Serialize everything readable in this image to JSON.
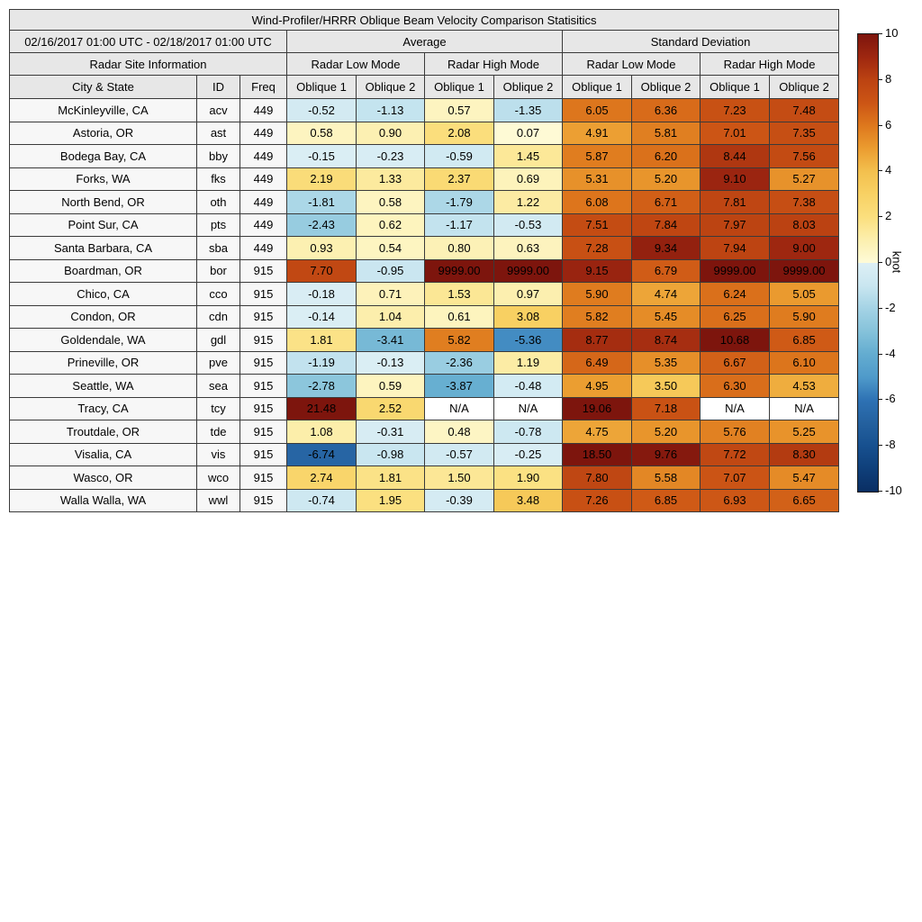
{
  "chart_data": {
    "type": "heatmap",
    "title": "Wind-Profiler/HRRR Oblique Beam Velocity Comparison Statisitics",
    "date_range": "02/16/2017 01:00 UTC - 02/18/2017 01:00 UTC",
    "group_headers": [
      "Average",
      "Standard Deviation"
    ],
    "site_info_header": "Radar Site Information",
    "mode_headers": [
      "Radar Low Mode",
      "Radar High Mode",
      "Radar Low Mode",
      "Radar High Mode"
    ],
    "column_headers": [
      "City & State",
      "ID",
      "Freq",
      "Oblique 1",
      "Oblique 2",
      "Oblique 1",
      "Oblique 2",
      "Oblique 1",
      "Oblique 2",
      "Oblique 1",
      "Oblique 2"
    ],
    "rows": [
      {
        "city": "McKinleyville, CA",
        "id": "acv",
        "freq": "449",
        "values": [
          "-0.52",
          "-1.13",
          "0.57",
          "-1.35",
          "6.05",
          "6.36",
          "7.23",
          "7.48"
        ]
      },
      {
        "city": "Astoria, OR",
        "id": "ast",
        "freq": "449",
        "values": [
          "0.58",
          "0.90",
          "2.08",
          "0.07",
          "4.91",
          "5.81",
          "7.01",
          "7.35"
        ]
      },
      {
        "city": "Bodega Bay, CA",
        "id": "bby",
        "freq": "449",
        "values": [
          "-0.15",
          "-0.23",
          "-0.59",
          "1.45",
          "5.87",
          "6.20",
          "8.44",
          "7.56"
        ]
      },
      {
        "city": "Forks, WA",
        "id": "fks",
        "freq": "449",
        "values": [
          "2.19",
          "1.33",
          "2.37",
          "0.69",
          "5.31",
          "5.20",
          "9.10",
          "5.27"
        ]
      },
      {
        "city": "North Bend, OR",
        "id": "oth",
        "freq": "449",
        "values": [
          "-1.81",
          "0.58",
          "-1.79",
          "1.22",
          "6.08",
          "6.71",
          "7.81",
          "7.38"
        ]
      },
      {
        "city": "Point Sur, CA",
        "id": "pts",
        "freq": "449",
        "values": [
          "-2.43",
          "0.62",
          "-1.17",
          "-0.53",
          "7.51",
          "7.84",
          "7.97",
          "8.03"
        ]
      },
      {
        "city": "Santa Barbara, CA",
        "id": "sba",
        "freq": "449",
        "values": [
          "0.93",
          "0.54",
          "0.80",
          "0.63",
          "7.28",
          "9.34",
          "7.94",
          "9.00"
        ]
      },
      {
        "city": "Boardman, OR",
        "id": "bor",
        "freq": "915",
        "values": [
          "7.70",
          "-0.95",
          "9999.00",
          "9999.00",
          "9.15",
          "6.79",
          "9999.00",
          "9999.00"
        ]
      },
      {
        "city": "Chico, CA",
        "id": "cco",
        "freq": "915",
        "values": [
          "-0.18",
          "0.71",
          "1.53",
          "0.97",
          "5.90",
          "4.74",
          "6.24",
          "5.05"
        ]
      },
      {
        "city": "Condon, OR",
        "id": "cdn",
        "freq": "915",
        "values": [
          "-0.14",
          "1.04",
          "0.61",
          "3.08",
          "5.82",
          "5.45",
          "6.25",
          "5.90"
        ]
      },
      {
        "city": "Goldendale, WA",
        "id": "gdl",
        "freq": "915",
        "values": [
          "1.81",
          "-3.41",
          "5.82",
          "-5.36",
          "8.77",
          "8.74",
          "10.68",
          "6.85"
        ]
      },
      {
        "city": "Prineville, OR",
        "id": "pve",
        "freq": "915",
        "values": [
          "-1.19",
          "-0.13",
          "-2.36",
          "1.19",
          "6.49",
          "5.35",
          "6.67",
          "6.10"
        ]
      },
      {
        "city": "Seattle, WA",
        "id": "sea",
        "freq": "915",
        "values": [
          "-2.78",
          "0.59",
          "-3.87",
          "-0.48",
          "4.95",
          "3.50",
          "6.30",
          "4.53"
        ]
      },
      {
        "city": "Tracy, CA",
        "id": "tcy",
        "freq": "915",
        "values": [
          "21.48",
          "2.52",
          "N/A",
          "N/A",
          "19.06",
          "7.18",
          "N/A",
          "N/A"
        ]
      },
      {
        "city": "Troutdale, OR",
        "id": "tde",
        "freq": "915",
        "values": [
          "1.08",
          "-0.31",
          "0.48",
          "-0.78",
          "4.75",
          "5.20",
          "5.76",
          "5.25"
        ]
      },
      {
        "city": "Visalia, CA",
        "id": "vis",
        "freq": "915",
        "values": [
          "-6.74",
          "-0.98",
          "-0.57",
          "-0.25",
          "18.50",
          "9.76",
          "7.72",
          "8.30"
        ]
      },
      {
        "city": "Wasco, OR",
        "id": "wco",
        "freq": "915",
        "values": [
          "2.74",
          "1.81",
          "1.50",
          "1.90",
          "7.80",
          "5.58",
          "7.07",
          "5.47"
        ]
      },
      {
        "city": "Walla Walla, WA",
        "id": "wwl",
        "freq": "915",
        "values": [
          "-0.74",
          "1.95",
          "-0.39",
          "3.48",
          "7.26",
          "6.85",
          "6.93",
          "6.65"
        ]
      }
    ],
    "colorbar": {
      "label": "knot",
      "min": -10,
      "max": 10,
      "ticks": [
        10,
        8,
        6,
        4,
        2,
        0,
        -2,
        -4,
        -6,
        -8,
        -10
      ]
    }
  },
  "colors": {
    "header_bg": "#e7e7e7",
    "label_cell_bg": "#f7f7f7",
    "border": "#3a3a3a",
    "na_bg": "#ffffff",
    "positive_anchors": [
      [
        0,
        "#fefbd8"
      ],
      [
        1,
        "#fcefae"
      ],
      [
        2,
        "#fbdf7e"
      ],
      [
        3,
        "#f8d164"
      ],
      [
        4,
        "#f3c04e"
      ],
      [
        5,
        "#eb9c30"
      ],
      [
        6,
        "#de781d"
      ],
      [
        7,
        "#cc5515"
      ],
      [
        8,
        "#bc4312"
      ],
      [
        9,
        "#9e2710"
      ],
      [
        10,
        "#7d150d"
      ]
    ],
    "negative_anchors": [
      [
        -10,
        "#0a2e63"
      ],
      [
        -9,
        "#0f3f7a"
      ],
      [
        -8,
        "#17508f"
      ],
      [
        -7,
        "#24619f"
      ],
      [
        -6,
        "#2e72b4"
      ],
      [
        -5,
        "#4f9aca"
      ],
      [
        -4,
        "#63acd0"
      ],
      [
        -3,
        "#85c2da"
      ],
      [
        -2,
        "#a4d3e5"
      ],
      [
        -1,
        "#c9e6f0"
      ],
      [
        0,
        "#ddeff5"
      ]
    ]
  }
}
